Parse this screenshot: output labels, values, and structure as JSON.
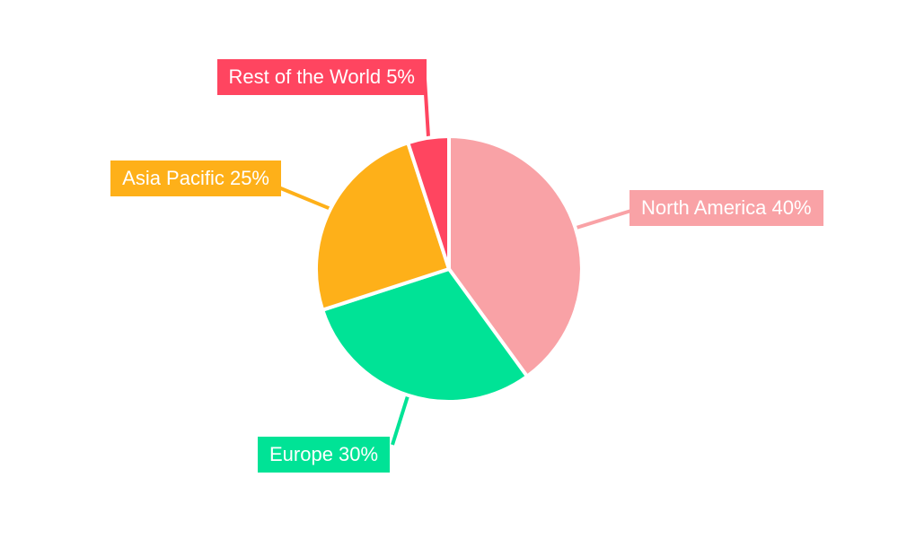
{
  "chart_data": {
    "type": "pie",
    "categories": [
      "North America",
      "Europe",
      "Asia Pacific",
      "Rest of the World"
    ],
    "values": [
      40,
      30,
      25,
      5
    ],
    "value_unit": "%",
    "labels": [
      "North America 40%",
      "Europe 30%",
      "Asia Pacific 25%",
      "Rest of the World 5%"
    ],
    "colors": [
      "#F9A2A6",
      "#00E396",
      "#FEB019",
      "#FF4560"
    ],
    "label_text_color": "#FFFFFF",
    "slice_border_color": "#FFFFFF",
    "background_color": "#FFFFFF",
    "start_angle_deg": 0,
    "direction": "clockwise",
    "title": "",
    "legend_position": "outlabels-with-leader-lines",
    "grid": false
  }
}
